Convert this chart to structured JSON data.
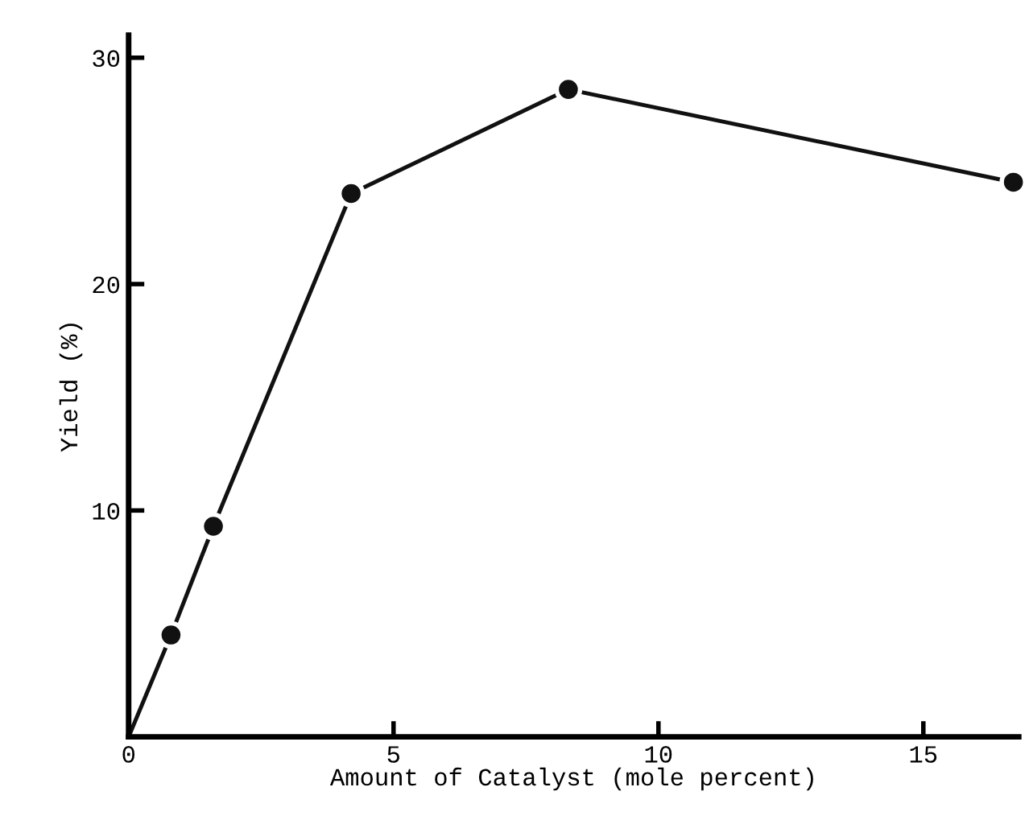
{
  "chart_data": {
    "type": "line",
    "xlabel": "Amount of Catalyst (mole percent)",
    "ylabel": "Yield (%)",
    "xlim": [
      0,
      16.8
    ],
    "ylim": [
      0,
      31
    ],
    "xticks": [
      0,
      5,
      10,
      15
    ],
    "yticks": [
      10,
      20,
      30
    ],
    "grid": false,
    "legend": false,
    "series": [
      {
        "color": "#111111",
        "marker": "none",
        "x": [
          0,
          0.8,
          1.6,
          4.2,
          8.3,
          16.7
        ],
        "values": [
          0,
          4.5,
          9.3,
          24.0,
          28.6,
          24.5
        ]
      },
      {
        "type": "scatter",
        "color": "#111111",
        "marker": "circle",
        "x": [
          0.8,
          1.6,
          4.2,
          8.3,
          16.7
        ],
        "values": [
          4.5,
          9.3,
          24.0,
          28.6,
          24.5
        ]
      }
    ]
  }
}
